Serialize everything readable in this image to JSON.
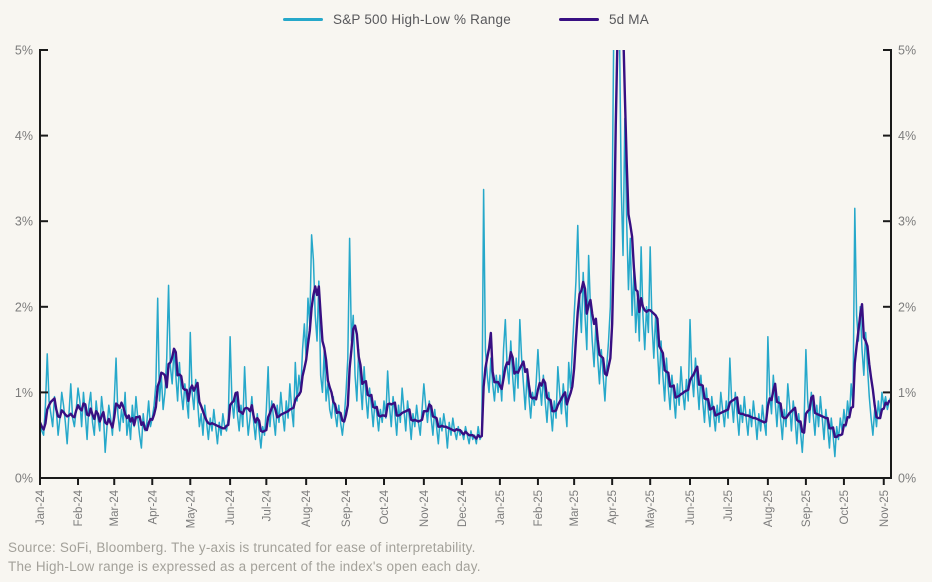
{
  "legend": {
    "items": [
      {
        "label": "S&P 500 High-Low % Range"
      },
      {
        "label": "5d MA"
      }
    ]
  },
  "footer": {
    "line1": "Source: SoFi, Bloomberg. The y-axis is truncated for ease of interpretability.",
    "line2": "The High-Low range is expressed as a percent of the index's open each day."
  },
  "colors": {
    "background": "#F8F6F1",
    "range_line": "#26A8CA",
    "ma_line": "#380F82",
    "axis": "#1A1A1A",
    "tick_label": "#7C7C7C",
    "footer_text": "#A3A19A",
    "legend_text": "#58585B"
  },
  "chart_data": {
    "type": "line",
    "title": "",
    "xlabel": "",
    "ylabel": "",
    "ylim": [
      0,
      5
    ],
    "y_ticks": [
      0,
      1,
      2,
      3,
      4,
      5
    ],
    "y_tick_format": "percent",
    "y_axis_truncated_at": 5,
    "grid": false,
    "legend_position": "top-center",
    "x_tick_labels": [
      "Jan-24",
      "Feb-24",
      "Mar-24",
      "Apr-24",
      "May-24",
      "Jun-24",
      "Jul-24",
      "Aug-24",
      "Sep-24",
      "Oct-24",
      "Nov-24",
      "Dec-24",
      "Jan-25",
      "Feb-25",
      "Mar-25",
      "Apr-25",
      "May-25",
      "Jun-25",
      "Jul-25",
      "Aug-25",
      "Sep-25",
      "Oct-25",
      "Nov-25"
    ],
    "x_tick_indices": [
      0,
      21,
      41,
      62,
      83,
      105,
      125,
      147,
      169,
      190,
      212,
      233,
      254,
      275,
      295,
      316,
      337,
      359,
      380,
      402,
      423,
      444,
      466
    ],
    "series": [
      {
        "name": "S&P 500 High-Low % Range",
        "color": "#26A8CA",
        "values": [
          0.65,
          0.55,
          0.5,
          0.85,
          1.45,
          0.9,
          0.75,
          0.6,
          0.95,
          0.8,
          0.5,
          0.7,
          1.0,
          0.85,
          0.65,
          0.4,
          0.75,
          1.1,
          0.7,
          0.6,
          0.8,
          1.05,
          0.9,
          0.6,
          1.0,
          0.75,
          0.45,
          0.85,
          1.0,
          0.65,
          0.5,
          0.9,
          0.7,
          0.55,
          0.95,
          0.75,
          0.3,
          0.6,
          0.85,
          0.7,
          0.5,
          0.9,
          1.4,
          0.75,
          0.55,
          0.8,
          0.65,
          1.0,
          0.5,
          0.7,
          0.45,
          0.85,
          0.6,
          0.95,
          0.7,
          0.5,
          0.35,
          0.75,
          0.55,
          0.65,
          0.9,
          0.6,
          0.7,
          0.85,
          1.1,
          2.1,
          0.9,
          1.2,
          0.8,
          1.0,
          1.4,
          2.25,
          1.3,
          1.1,
          1.5,
          1.2,
          0.9,
          1.35,
          1.0,
          0.8,
          1.1,
          0.9,
          0.7,
          1.7,
          1.0,
          0.8,
          1.15,
          0.9,
          0.6,
          0.75,
          0.5,
          0.85,
          0.65,
          0.45,
          0.7,
          0.55,
          0.8,
          0.6,
          0.4,
          0.65,
          0.5,
          0.75,
          0.6,
          0.55,
          0.7,
          1.65,
          0.9,
          0.7,
          1.0,
          0.75,
          0.55,
          0.85,
          0.6,
          1.3,
          0.8,
          0.5,
          0.7,
          0.95,
          0.65,
          0.45,
          0.75,
          0.55,
          0.35,
          0.6,
          0.5,
          0.8,
          1.3,
          0.6,
          0.9,
          0.7,
          0.5,
          0.85,
          0.65,
          1.0,
          0.75,
          0.55,
          0.9,
          0.7,
          1.1,
          0.8,
          0.6,
          1.35,
          0.9,
          1.2,
          1.0,
          1.5,
          1.8,
          1.4,
          2.1,
          1.8,
          2.84,
          2.55,
          1.9,
          1.6,
          2.3,
          1.2,
          1.0,
          1.5,
          0.9,
          1.1,
          0.8,
          0.7,
          0.95,
          0.75,
          0.6,
          0.85,
          0.65,
          0.5,
          0.7,
          1.0,
          1.4,
          2.8,
          1.6,
          1.9,
          1.2,
          0.9,
          1.5,
          1.1,
          0.8,
          1.3,
          0.95,
          0.7,
          1.05,
          0.85,
          0.6,
          0.9,
          0.75,
          0.55,
          0.8,
          0.65,
          0.9,
          0.7,
          1.25,
          0.85,
          0.6,
          0.95,
          0.75,
          0.5,
          0.85,
          0.65,
          1.05,
          0.8,
          0.55,
          0.9,
          0.7,
          0.45,
          0.75,
          0.6,
          0.85,
          0.65,
          0.5,
          0.8,
          1.1,
          0.85,
          0.65,
          0.9,
          0.7,
          0.5,
          0.8,
          0.6,
          0.4,
          0.7,
          0.55,
          0.75,
          0.6,
          0.35,
          0.65,
          0.5,
          0.7,
          0.55,
          0.45,
          0.6,
          0.5,
          0.55,
          0.45,
          0.6,
          0.5,
          0.4,
          0.55,
          0.45,
          0.5,
          0.4,
          0.6,
          0.45,
          0.5,
          3.37,
          1.5,
          1.2,
          1.0,
          1.4,
          1.1,
          0.9,
          1.2,
          1.0,
          1.2,
          0.9,
          1.5,
          1.85,
          1.3,
          1.1,
          1.6,
          1.2,
          0.9,
          1.4,
          1.05,
          1.85,
          1.4,
          1.1,
          0.8,
          1.2,
          0.95,
          0.7,
          1.0,
          0.85,
          1.1,
          1.5,
          1.1,
          0.85,
          1.2,
          0.9,
          0.65,
          1.0,
          0.8,
          0.55,
          0.9,
          0.7,
          1.3,
          1.0,
          0.75,
          1.1,
          0.85,
          0.6,
          1.35,
          1.05,
          1.5,
          1.9,
          2.3,
          2.95,
          2.1,
          1.7,
          2.4,
          1.9,
          1.5,
          2.6,
          2.0,
          1.6,
          1.3,
          1.8,
          1.4,
          1.1,
          1.5,
          1.2,
          0.9,
          1.3,
          1.6,
          2.0,
          3.2,
          5.5,
          8.4,
          6.9,
          5.3,
          3.4,
          2.6,
          4.2,
          3.0,
          2.2,
          2.8,
          1.9,
          2.4,
          1.7,
          2.1,
          1.6,
          2.7,
          1.9,
          1.5,
          2.0,
          1.7,
          2.7,
          1.8,
          1.4,
          1.9,
          1.5,
          1.1,
          1.6,
          1.2,
          0.9,
          1.4,
          1.05,
          0.8,
          1.2,
          0.95,
          0.7,
          1.1,
          0.85,
          1.3,
          1.0,
          0.8,
          1.15,
          0.9,
          1.85,
          1.2,
          0.95,
          1.4,
          1.1,
          0.8,
          1.2,
          0.9,
          0.65,
          1.05,
          0.8,
          0.6,
          0.95,
          0.75,
          0.55,
          0.85,
          0.65,
          1.0,
          0.8,
          0.6,
          0.9,
          0.7,
          1.4,
          0.9,
          0.65,
          1.0,
          0.75,
          0.5,
          0.85,
          0.65,
          0.95,
          0.7,
          0.5,
          0.8,
          0.6,
          0.9,
          0.7,
          0.45,
          0.75,
          0.55,
          0.85,
          0.65,
          0.5,
          1.65,
          1.0,
          0.75,
          1.2,
          0.9,
          0.6,
          0.95,
          0.7,
          0.45,
          0.8,
          0.6,
          1.1,
          0.85,
          0.55,
          0.9,
          0.7,
          0.4,
          0.75,
          0.55,
          0.3,
          0.65,
          1.5,
          0.9,
          0.65,
          1.0,
          0.75,
          0.5,
          0.85,
          0.6,
          0.95,
          0.7,
          0.45,
          0.8,
          0.6,
          0.35,
          0.7,
          0.5,
          0.25,
          0.6,
          0.45,
          0.7,
          0.55,
          0.8,
          0.6,
          0.9,
          0.7,
          1.1,
          0.85,
          3.15,
          1.9,
          1.6,
          2.0,
          1.5,
          1.2,
          1.7,
          1.3,
          0.95,
          0.7,
          0.5,
          0.8,
          0.6,
          0.9,
          0.7,
          1.0,
          0.85,
          0.95,
          0.8,
          0.9,
          0.95
        ]
      },
      {
        "name": "5d MA",
        "color": "#380F82",
        "derived": "trailing 5-point moving average of series 0",
        "window": 5
      }
    ]
  }
}
